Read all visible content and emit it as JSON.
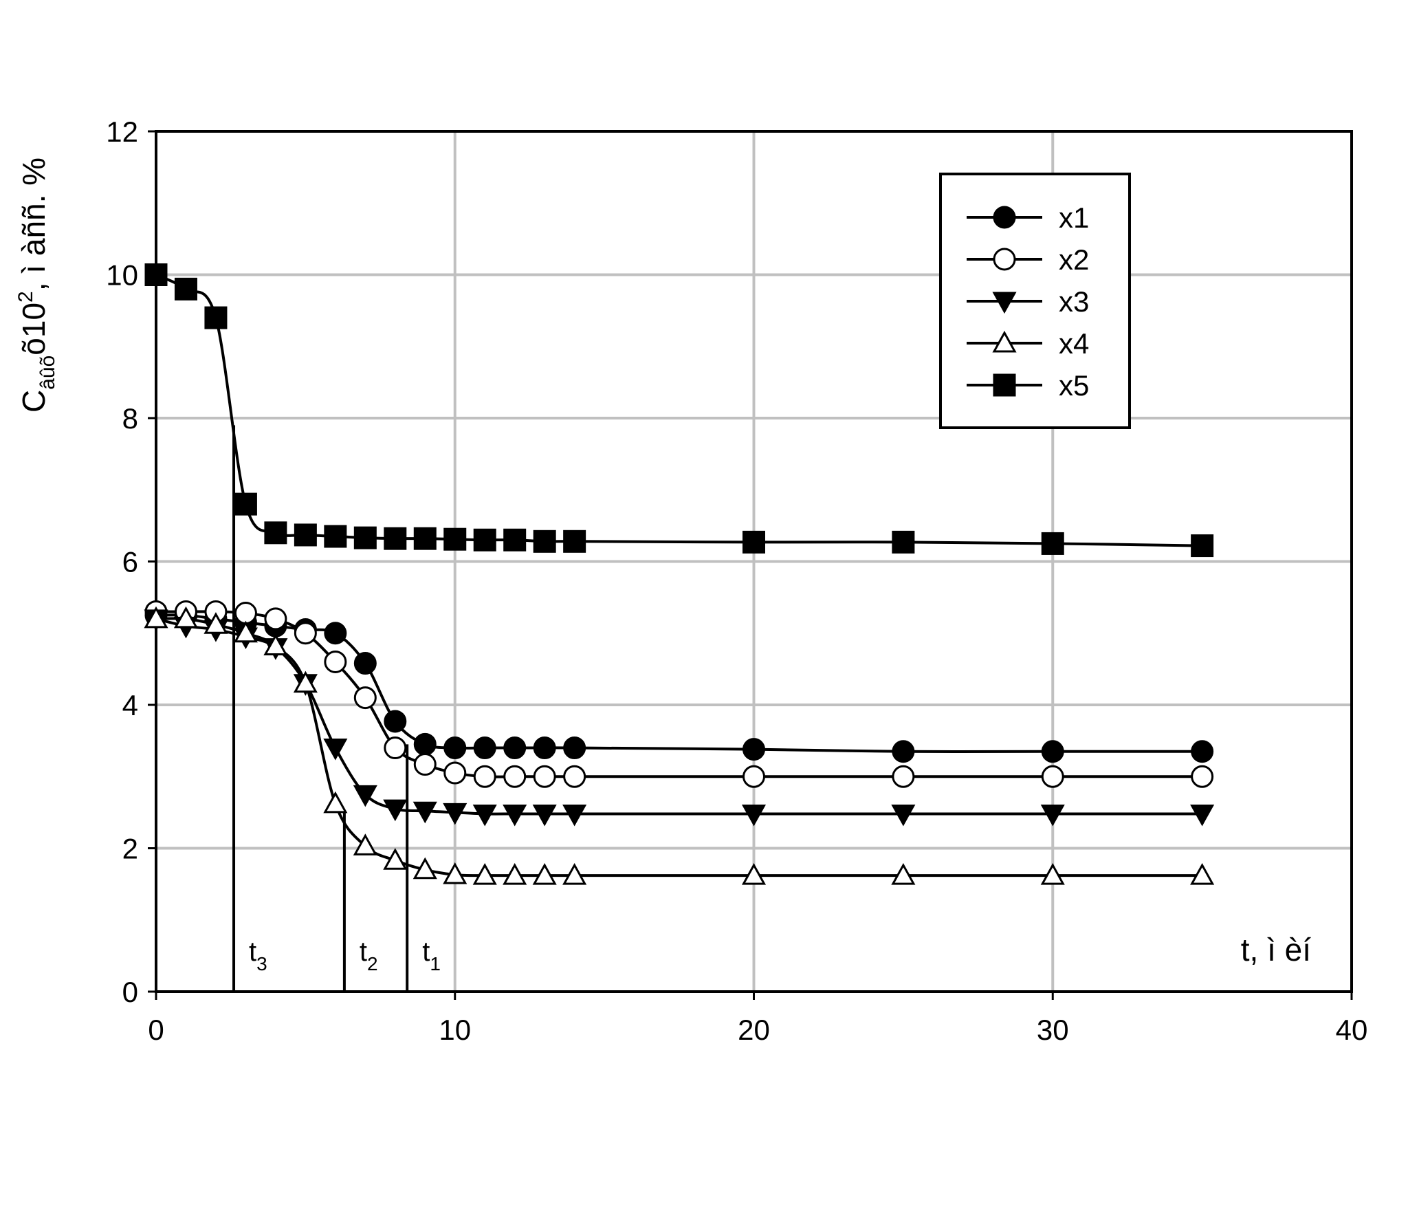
{
  "chart_data": {
    "type": "line",
    "ylabel": {
      "main": "C",
      "sub": "âûõ",
      "mid": "õ10",
      "sup": "2",
      "tail": ", ì àññ. %"
    },
    "xlabel": "t, ì èí",
    "xlim": [
      0,
      40
    ],
    "xticks": [
      0,
      10,
      20,
      30,
      40
    ],
    "ylim": [
      0,
      12
    ],
    "yticks": [
      0,
      2,
      4,
      6,
      8,
      10,
      12
    ],
    "grid": true,
    "legend": "upper right",
    "series": [
      {
        "name": "x1",
        "color": "#000000",
        "marker": "circle-filled",
        "x": [
          0,
          1,
          2,
          3,
          4,
          5,
          6,
          7,
          8,
          9,
          10,
          11,
          12,
          13,
          14,
          20,
          25,
          30,
          35
        ],
        "values": [
          5.25,
          5.25,
          5.2,
          5.15,
          5.1,
          5.05,
          5.0,
          4.58,
          3.77,
          3.45,
          3.4,
          3.4,
          3.4,
          3.4,
          3.4,
          3.38,
          3.35,
          3.35,
          3.35
        ]
      },
      {
        "name": "x2",
        "color": "#000000",
        "marker": "circle-open",
        "x": [
          0,
          1,
          2,
          3,
          4,
          5,
          6,
          7,
          8,
          9,
          10,
          11,
          12,
          13,
          14,
          20,
          25,
          30,
          35
        ],
        "values": [
          5.3,
          5.3,
          5.3,
          5.28,
          5.2,
          5.0,
          4.6,
          4.1,
          3.4,
          3.17,
          3.05,
          3.0,
          3.0,
          3.0,
          3.0,
          3.0,
          3.0,
          3.0,
          3.0
        ]
      },
      {
        "name": "x3",
        "color": "#000000",
        "marker": "triangle-down-filled",
        "x": [
          0,
          1,
          2,
          3,
          4,
          5,
          6,
          7,
          8,
          9,
          10,
          11,
          12,
          13,
          14,
          20,
          25,
          30,
          35
        ],
        "values": [
          5.2,
          5.1,
          5.05,
          4.95,
          4.8,
          4.3,
          3.4,
          2.75,
          2.55,
          2.52,
          2.5,
          2.48,
          2.48,
          2.48,
          2.48,
          2.48,
          2.48,
          2.48,
          2.48
        ]
      },
      {
        "name": "x4",
        "color": "#000000",
        "marker": "triangle-up-open",
        "x": [
          0,
          1,
          2,
          3,
          4,
          5,
          6,
          7,
          8,
          9,
          10,
          11,
          12,
          13,
          14,
          20,
          25,
          30,
          35
        ],
        "values": [
          5.2,
          5.2,
          5.12,
          5.0,
          4.82,
          4.3,
          2.62,
          2.03,
          1.83,
          1.7,
          1.63,
          1.62,
          1.62,
          1.62,
          1.62,
          1.62,
          1.62,
          1.62,
          1.62
        ]
      },
      {
        "name": "x5",
        "color": "#000000",
        "marker": "square-filled",
        "x": [
          0,
          1,
          2,
          3,
          4,
          5,
          6,
          7,
          8,
          9,
          10,
          11,
          12,
          13,
          14,
          20,
          25,
          30,
          35
        ],
        "values": [
          10,
          9.8,
          9.4,
          6.8,
          6.4,
          6.37,
          6.35,
          6.33,
          6.32,
          6.32,
          6.31,
          6.3,
          6.3,
          6.28,
          6.28,
          6.27,
          6.27,
          6.25,
          6.22
        ]
      }
    ],
    "markers": [
      {
        "base": "t",
        "sub": "3",
        "x": 2.6,
        "y": 7.9
      },
      {
        "base": "t",
        "sub": "2",
        "x": 6.3,
        "y": 2.5
      },
      {
        "base": "t",
        "sub": "1",
        "x": 8.4,
        "y": 3.45
      }
    ]
  }
}
